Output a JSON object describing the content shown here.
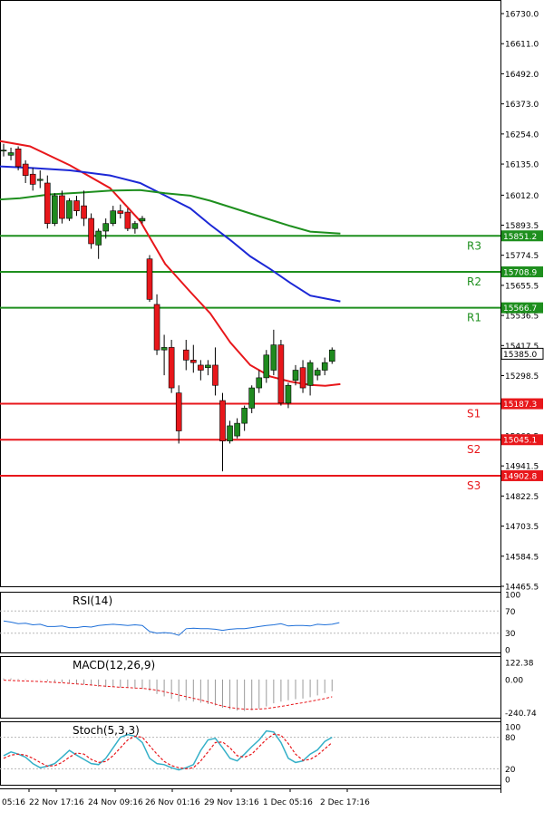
{
  "chart_data": [
    {
      "type": "candlestick",
      "panel": "price",
      "ylim": [
        14465.5,
        16730.0
      ],
      "y_ticks": [
        "16730.0",
        "16611.0",
        "16492.0",
        "16373.0",
        "16254.0",
        "16135.0",
        "16012.0",
        "15893.5",
        "15774.5",
        "15655.5",
        "15536.5",
        "15417.5",
        "15298.5",
        "15179.5",
        "15060.5",
        "14941.5",
        "14822.5",
        "14703.5",
        "14584.5",
        "14465.5"
      ],
      "x_tick_labels": [
        "05:16",
        "22 Nov 17:16",
        "24 Nov 09:16",
        "26 Nov 01:16",
        "29 Nov 13:16",
        "1 Dec 05:16",
        "2 Dec 17:16"
      ],
      "candles": [
        {
          "o": 16190,
          "h": 16215,
          "l": 16165,
          "c": 16190
        },
        {
          "o": 16170,
          "h": 16200,
          "l": 16150,
          "c": 16180
        },
        {
          "o": 16195,
          "h": 16205,
          "l": 16110,
          "c": 16125
        },
        {
          "o": 16135,
          "h": 16150,
          "l": 16060,
          "c": 16090
        },
        {
          "o": 16095,
          "h": 16120,
          "l": 16030,
          "c": 16055
        },
        {
          "o": 16070,
          "h": 16110,
          "l": 16040,
          "c": 16075
        },
        {
          "o": 16060,
          "h": 16090,
          "l": 15880,
          "c": 15900
        },
        {
          "o": 15900,
          "h": 16020,
          "l": 15890,
          "c": 16010
        },
        {
          "o": 16010,
          "h": 16030,
          "l": 15900,
          "c": 15920
        },
        {
          "o": 15920,
          "h": 16000,
          "l": 15910,
          "c": 15990
        },
        {
          "o": 15990,
          "h": 16010,
          "l": 15930,
          "c": 15950
        },
        {
          "o": 15970,
          "h": 16030,
          "l": 15890,
          "c": 15920
        },
        {
          "o": 15920,
          "h": 15940,
          "l": 15800,
          "c": 15820
        },
        {
          "o": 15815,
          "h": 15880,
          "l": 15760,
          "c": 15870
        },
        {
          "o": 15870,
          "h": 15920,
          "l": 15840,
          "c": 15900
        },
        {
          "o": 15900,
          "h": 15970,
          "l": 15890,
          "c": 15950
        },
        {
          "o": 15950,
          "h": 15975,
          "l": 15920,
          "c": 15940
        },
        {
          "o": 15945,
          "h": 15960,
          "l": 15870,
          "c": 15880
        },
        {
          "o": 15880,
          "h": 15910,
          "l": 15860,
          "c": 15900
        },
        {
          "o": 15910,
          "h": 15930,
          "l": 15900,
          "c": 15920
        },
        {
          "o": 15760,
          "h": 15775,
          "l": 15590,
          "c": 15600
        },
        {
          "o": 15580,
          "h": 15620,
          "l": 15380,
          "c": 15400
        },
        {
          "o": 15400,
          "h": 15460,
          "l": 15300,
          "c": 15410
        },
        {
          "o": 15410,
          "h": 15440,
          "l": 15230,
          "c": 15250
        },
        {
          "o": 15230,
          "h": 15260,
          "l": 15030,
          "c": 15080
        },
        {
          "o": 15400,
          "h": 15440,
          "l": 15320,
          "c": 15360
        },
        {
          "o": 15360,
          "h": 15420,
          "l": 15310,
          "c": 15350
        },
        {
          "o": 15340,
          "h": 15360,
          "l": 15280,
          "c": 15320
        },
        {
          "o": 15330,
          "h": 15360,
          "l": 15300,
          "c": 15340
        },
        {
          "o": 15340,
          "h": 15410,
          "l": 15220,
          "c": 15260
        },
        {
          "o": 15200,
          "h": 15230,
          "l": 14920,
          "c": 15040
        },
        {
          "o": 15040,
          "h": 15120,
          "l": 15030,
          "c": 15100
        },
        {
          "o": 15060,
          "h": 15130,
          "l": 15050,
          "c": 15110
        },
        {
          "o": 15110,
          "h": 15180,
          "l": 15080,
          "c": 15170
        },
        {
          "o": 15170,
          "h": 15260,
          "l": 15150,
          "c": 15250
        },
        {
          "o": 15250,
          "h": 15320,
          "l": 15230,
          "c": 15290
        },
        {
          "o": 15290,
          "h": 15400,
          "l": 15270,
          "c": 15380
        },
        {
          "o": 15320,
          "h": 15480,
          "l": 15300,
          "c": 15420
        },
        {
          "o": 15420,
          "h": 15440,
          "l": 15180,
          "c": 15190
        },
        {
          "o": 15190,
          "h": 15270,
          "l": 15170,
          "c": 15260
        },
        {
          "o": 15280,
          "h": 15340,
          "l": 15260,
          "c": 15320
        },
        {
          "o": 15330,
          "h": 15360,
          "l": 15230,
          "c": 15250
        },
        {
          "o": 15260,
          "h": 15360,
          "l": 15220,
          "c": 15350
        },
        {
          "o": 15300,
          "h": 15330,
          "l": 15280,
          "c": 15320
        },
        {
          "o": 15320,
          "h": 15370,
          "l": 15300,
          "c": 15350
        },
        {
          "o": 15355,
          "h": 15410,
          "l": 15345,
          "c": 15400
        }
      ],
      "moving_averages": [
        {
          "color": "#e8171b",
          "points": [
            [
              -0.04,
              16240
            ],
            [
              0.06,
              16205
            ],
            [
              0.14,
              16130
            ],
            [
              0.22,
              16040
            ],
            [
              0.28,
              15910
            ],
            [
              0.33,
              15740
            ],
            [
              0.38,
              15630
            ],
            [
              0.42,
              15545
            ],
            [
              0.46,
              15430
            ],
            [
              0.5,
              15340
            ],
            [
              0.54,
              15295
            ],
            [
              0.58,
              15275
            ],
            [
              0.62,
              15262
            ],
            [
              0.65,
              15258
            ],
            [
              0.68,
              15265
            ]
          ]
        },
        {
          "color": "#1c28d6",
          "points": [
            [
              -0.04,
              16130
            ],
            [
              0.06,
              16120
            ],
            [
              0.14,
              16110
            ],
            [
              0.22,
              16090
            ],
            [
              0.28,
              16060
            ],
            [
              0.33,
              16010
            ],
            [
              0.38,
              15960
            ],
            [
              0.42,
              15895
            ],
            [
              0.46,
              15835
            ],
            [
              0.5,
              15770
            ],
            [
              0.54,
              15720
            ],
            [
              0.58,
              15665
            ],
            [
              0.62,
              15615
            ],
            [
              0.68,
              15592
            ]
          ]
        },
        {
          "color": "#1e8f1e",
          "points": [
            [
              -0.04,
              15990
            ],
            [
              0.04,
              16000
            ],
            [
              0.1,
              16015
            ],
            [
              0.16,
              16022
            ],
            [
              0.22,
              16030
            ],
            [
              0.28,
              16032
            ],
            [
              0.33,
              16020
            ],
            [
              0.38,
              16010
            ],
            [
              0.42,
              15990
            ],
            [
              0.46,
              15965
            ],
            [
              0.5,
              15940
            ],
            [
              0.54,
              15915
            ],
            [
              0.58,
              15890
            ],
            [
              0.62,
              15868
            ],
            [
              0.68,
              15860
            ]
          ]
        }
      ],
      "levels": [
        {
          "label": "R3",
          "value": 15851.2,
          "value_label": "15851.2",
          "color": "#1e8f1e"
        },
        {
          "label": "R2",
          "value": 15708.9,
          "value_label": "15708.9",
          "color": "#1e8f1e"
        },
        {
          "label": "R1",
          "value": 15566.7,
          "value_label": "15566.7",
          "color": "#1e8f1e"
        },
        {
          "label": "S1",
          "value": 15187.3,
          "value_label": "15187.3",
          "color": "#e8171b"
        },
        {
          "label": "S2",
          "value": 15045.1,
          "value_label": "15045.1",
          "color": "#e8171b"
        },
        {
          "label": "S3",
          "value": 14902.8,
          "value_label": "14902.8",
          "color": "#e8171b"
        }
      ],
      "current_price": {
        "value": 15385.0,
        "label": "15385.0"
      },
      "colors": {
        "up": "#1f8a1f",
        "down": "#e8171b",
        "wick": "#000000"
      }
    },
    {
      "type": "line",
      "panel": "rsi",
      "title": "RSI(14)",
      "ylim": [
        0,
        100
      ],
      "y_ticks": [
        "100",
        "70",
        "30",
        "0"
      ],
      "guides": [
        70,
        30
      ],
      "color": "#1e6fd8",
      "values": [
        52,
        50,
        47,
        48,
        45,
        46,
        42,
        42,
        43,
        40,
        40,
        42,
        41,
        44,
        45,
        46,
        45,
        44,
        45,
        44,
        33,
        30,
        31,
        30,
        26,
        38,
        39,
        38,
        38,
        37,
        35,
        37,
        38,
        38,
        40,
        42,
        44,
        45,
        47,
        43,
        44,
        44,
        43,
        46,
        45,
        46,
        49
      ]
    },
    {
      "type": "line",
      "panel": "macd",
      "title": "MACD(12,26,9)",
      "ylim": [
        -250,
        130
      ],
      "y_ticks": [
        "122.38",
        "0.00",
        "-240.74"
      ],
      "colors": {
        "histogram": "#9a9a9a",
        "signal": "#e8171b"
      },
      "histogram": [
        8,
        8,
        5,
        3,
        1,
        -2,
        -12,
        -16,
        -20,
        -26,
        -32,
        -36,
        -44,
        -52,
        -55,
        -56,
        -58,
        -60,
        -65,
        -68,
        -82,
        -105,
        -122,
        -140,
        -160,
        -150,
        -160,
        -168,
        -178,
        -188,
        -205,
        -215,
        -225,
        -228,
        -222,
        -210,
        -195,
        -172,
        -160,
        -150,
        -142,
        -138,
        -128,
        -115,
        -98,
        -85
      ],
      "signal": [
        -5,
        -7,
        -9,
        -11,
        -13,
        -15,
        -18,
        -21,
        -24,
        -28,
        -32,
        -36,
        -40,
        -44,
        -48,
        -52,
        -56,
        -58,
        -62,
        -64,
        -70,
        -78,
        -88,
        -100,
        -112,
        -124,
        -136,
        -148,
        -162,
        -178,
        -192,
        -202,
        -210,
        -214,
        -216,
        -214,
        -210,
        -202,
        -194,
        -186,
        -176,
        -168,
        -158,
        -148,
        -138,
        -125
      ]
    },
    {
      "type": "line",
      "panel": "stoch",
      "title": "Stoch(5,3,3)",
      "ylim": [
        0,
        100
      ],
      "y_ticks": [
        "100",
        "80",
        "20",
        "0"
      ],
      "guides": [
        80,
        20
      ],
      "colors": {
        "k": "#34b0c8",
        "d": "#e8171b"
      },
      "k": [
        45,
        52,
        48,
        42,
        30,
        22,
        25,
        30,
        42,
        55,
        46,
        38,
        30,
        28,
        40,
        60,
        80,
        85,
        82,
        70,
        40,
        30,
        28,
        22,
        18,
        22,
        28,
        55,
        75,
        78,
        60,
        40,
        35,
        48,
        62,
        75,
        92,
        90,
        70,
        40,
        32,
        35,
        48,
        56,
        72,
        80
      ],
      "d": [
        40,
        46,
        48,
        46,
        40,
        32,
        25,
        26,
        32,
        42,
        50,
        48,
        38,
        32,
        34,
        45,
        60,
        75,
        82,
        80,
        64,
        48,
        34,
        26,
        22,
        20,
        22,
        35,
        52,
        70,
        71,
        60,
        45,
        42,
        48,
        62,
        76,
        86,
        84,
        68,
        48,
        36,
        38,
        46,
        58,
        70
      ]
    }
  ]
}
